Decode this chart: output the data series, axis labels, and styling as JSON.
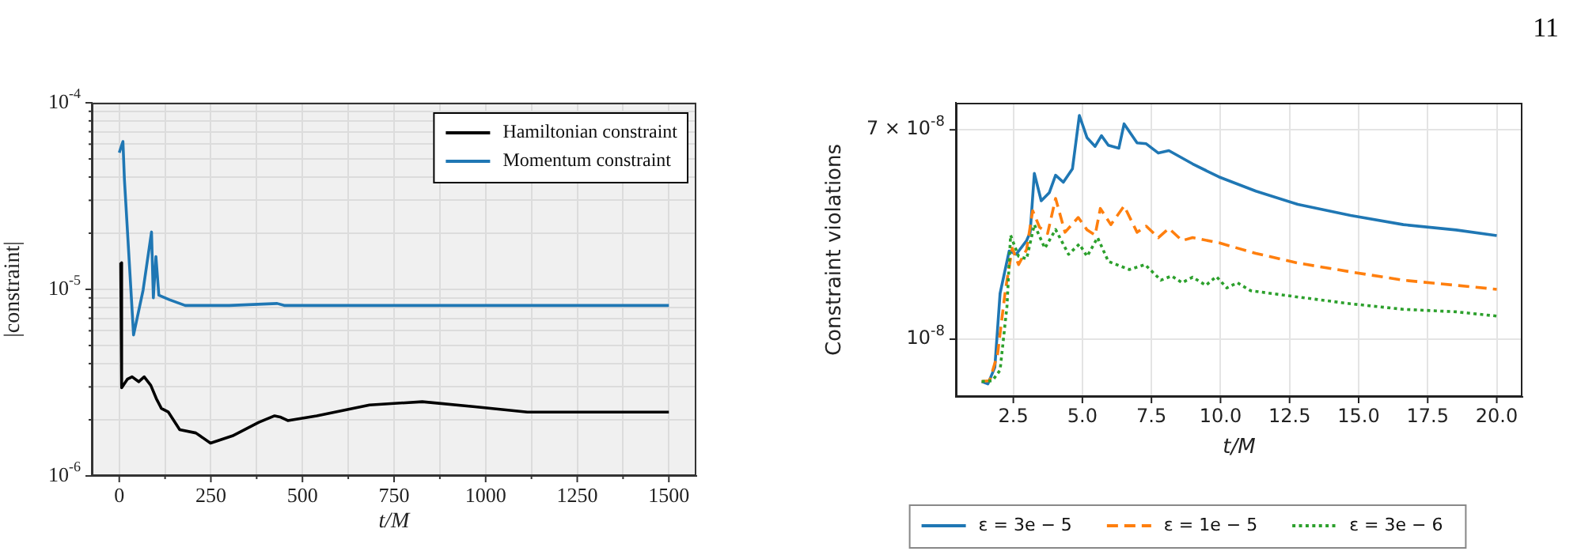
{
  "chart_data": [
    {
      "type": "line",
      "xlabel": "t/M",
      "ylabel": "|constraint|",
      "log": "y",
      "grid": true,
      "legend": "top right",
      "xlim": [
        -75,
        1575
      ],
      "ylim": [
        1e-06,
        0.0001
      ],
      "xticks": [
        0,
        {
          "value": 125,
          "label": null
        },
        250,
        {
          "value": 375,
          "label": null
        },
        500,
        {
          "value": 625,
          "label": null
        },
        750,
        {
          "value": 875,
          "label": null
        },
        1000,
        {
          "value": 1125,
          "label": null
        },
        1250,
        {
          "value": 1375,
          "label": null
        },
        1500
      ],
      "yticks": [
        {
          "value": 1e-06,
          "label": "10$^{-6}$"
        },
        {
          "value": 2e-06,
          "label": null
        },
        {
          "value": 3e-06,
          "label": null
        },
        {
          "value": 4e-06,
          "label": null
        },
        {
          "value": 5e-06,
          "label": null
        },
        {
          "value": 6e-06,
          "label": null
        },
        {
          "value": 7e-06,
          "label": null
        },
        {
          "value": 8e-06,
          "label": null
        },
        {
          "value": 9e-06,
          "label": null
        },
        {
          "value": 1e-05,
          "label": "10$^{-5}$"
        },
        {
          "value": 2e-05,
          "label": null
        },
        {
          "value": 3e-05,
          "label": null
        },
        {
          "value": 4e-05,
          "label": null
        },
        {
          "value": 5e-05,
          "label": null
        },
        {
          "value": 6e-05,
          "label": null
        },
        {
          "value": 7e-05,
          "label": null
        },
        {
          "value": 8e-05,
          "label": null
        },
        {
          "value": 9e-05,
          "label": null
        },
        {
          "value": 0.0001,
          "label": "10$^{-4}$"
        }
      ],
      "series": [
        {
          "name": "Hamiltonian constraint",
          "color": "#000000",
          "line_style": "solid",
          "x": [
            4,
            6,
            7,
            22,
            35,
            53,
            68,
            86,
            101,
            115,
            134,
            165,
            209,
            249,
            309,
            381,
            424,
            439,
            460,
            539,
            683,
            827,
            971,
            1114,
            1258,
            1500
          ],
          "values": [
            1.39e-05,
            3e-06,
            2.97e-06,
            3.3e-06,
            3.4e-06,
            3.2e-06,
            3.4e-06,
            3.06e-06,
            2.6e-06,
            2.3e-06,
            2.2e-06,
            1.77e-06,
            1.7e-06,
            1.5e-06,
            1.64e-06,
            1.94e-06,
            2.1e-06,
            2.07e-06,
            1.98e-06,
            2.1e-06,
            2.4e-06,
            2.5e-06,
            2.35e-06,
            2.2e-06,
            2.2e-06,
            2.2e-06
          ]
        },
        {
          "name": "Momentum constraint",
          "color": "#1f77b4",
          "line_style": "solid",
          "x": [
            0,
            10,
            14,
            39,
            65,
            88,
            93,
            100,
            108,
            137,
            180,
            300,
            431,
            450,
            700,
            1000,
            1500
          ],
          "values": [
            5.4e-05,
            6.2e-05,
            3.9e-05,
            5.7e-06,
            9.9e-06,
            2.03e-05,
            9e-06,
            1.5e-05,
            9.3e-06,
            8.8e-06,
            8.2e-06,
            8.2e-06,
            8.4e-06,
            8.2e-06,
            8.2e-06,
            8.2e-06,
            8.2e-06
          ]
        }
      ]
    },
    {
      "type": "line",
      "xlabel": "t/M",
      "ylabel": "Constraint violations",
      "log": "y",
      "grid": true,
      "legend": "bottom",
      "annotations": [
        "11"
      ],
      "xlim": [
        0.42,
        20.93
      ],
      "ylim": [
        5.85e-09,
        9e-08
      ],
      "xticks": [
        2.5,
        {
          "value": 5,
          "label": "5.0"
        },
        7.5,
        {
          "value": 10,
          "label": "10.0"
        },
        12.5,
        {
          "value": 15,
          "label": "15.0"
        },
        17.5,
        {
          "value": 20,
          "label": "20.0"
        }
      ],
      "yticks": [
        {
          "value": 1e-08,
          "label": "10$^{-8}$"
        },
        {
          "value": 7e-08,
          "label": "7 × 10$^{-8}$"
        }
      ],
      "series": [
        {
          "name": "ε = 3e − 5",
          "color": "#1f77b4",
          "line_style": "solid",
          "x": [
            1.355,
            1.58,
            1.83,
            2.02,
            2.35,
            2.6,
            2.98,
            3.11,
            3.26,
            3.51,
            3.8,
            4.03,
            4.31,
            4.64,
            4.89,
            5.17,
            5.46,
            5.69,
            5.94,
            6.32,
            6.51,
            6.98,
            7.31,
            7.75,
            8.13,
            8.99,
            9.94,
            11.28,
            12.8,
            14.71,
            16.62,
            18.53,
            20
          ],
          "values": [
            6.75e-09,
            6.6e-09,
            7.7e-09,
            1.53e-08,
            2.27e-08,
            2.2e-08,
            2.5e-08,
            2.7e-08,
            4.67e-08,
            3.62e-08,
            3.9e-08,
            4.59e-08,
            4.3e-08,
            4.87e-08,
            8e-08,
            6.5e-08,
            6e-08,
            6.63e-08,
            6.06e-08,
            5.9e-08,
            7.4e-08,
            6.2e-08,
            6.15e-08,
            5.64e-08,
            5.77e-08,
            5.1e-08,
            4.52e-08,
            3.96e-08,
            3.5e-08,
            3.16e-08,
            2.9e-08,
            2.76e-08,
            2.62e-08
          ]
        },
        {
          "name": "ε = 1e − 5",
          "color": "#ff7f0e",
          "line_style": "dashed",
          "x": [
            1.355,
            1.64,
            1.93,
            2.21,
            2.46,
            2.69,
            2.98,
            3.2,
            3.45,
            3.74,
            4.03,
            4.37,
            4.85,
            5.17,
            5.46,
            5.65,
            6.03,
            6.51,
            6.98,
            7.31,
            7.75,
            8.13,
            8.61,
            8.99,
            9.94,
            11.28,
            12.8,
            14.71,
            16.62,
            18.53,
            20
          ],
          "values": [
            6.75e-09,
            6.8e-09,
            8.7e-09,
            1.57e-08,
            2.33e-08,
            2e-08,
            2.3e-08,
            3.3e-08,
            2.83e-08,
            2.67e-08,
            3.7e-08,
            2.7e-08,
            3.1e-08,
            2.76e-08,
            2.63e-08,
            3.37e-08,
            2.9e-08,
            3.45e-08,
            2.7e-08,
            2.86e-08,
            2.57e-08,
            2.8e-08,
            2.5e-08,
            2.57e-08,
            2.45e-08,
            2.22e-08,
            2.03e-08,
            1.87e-08,
            1.73e-08,
            1.65e-08,
            1.59e-08
          ]
        },
        {
          "name": "ε = 3e − 6",
          "color": "#2ca02c",
          "line_style": "dotted",
          "x": [
            1.355,
            1.74,
            2.02,
            2.27,
            2.4,
            2.69,
            2.98,
            3.26,
            3.64,
            4.03,
            4.5,
            4.89,
            5.17,
            5.55,
            5.94,
            6.7,
            7.27,
            7.84,
            8.23,
            8.61,
            8.99,
            9.47,
            9.85,
            10.23,
            10.61,
            11.09,
            12.8,
            14.71,
            16.62,
            18.53,
            20
          ],
          "values": [
            6.75e-09,
            6.8e-09,
            7.5e-09,
            1.36e-08,
            2.63e-08,
            2.16e-08,
            2.11e-08,
            2.9e-08,
            2.33e-08,
            2.77e-08,
            2.2e-08,
            2.42e-08,
            2.16e-08,
            2.57e-08,
            2.06e-08,
            1.91e-08,
            2e-08,
            1.73e-08,
            1.8e-08,
            1.69e-08,
            1.78e-08,
            1.65e-08,
            1.79e-08,
            1.61e-08,
            1.69e-08,
            1.57e-08,
            1.48e-08,
            1.39e-08,
            1.32e-08,
            1.29e-08,
            1.24e-08
          ]
        }
      ]
    }
  ]
}
